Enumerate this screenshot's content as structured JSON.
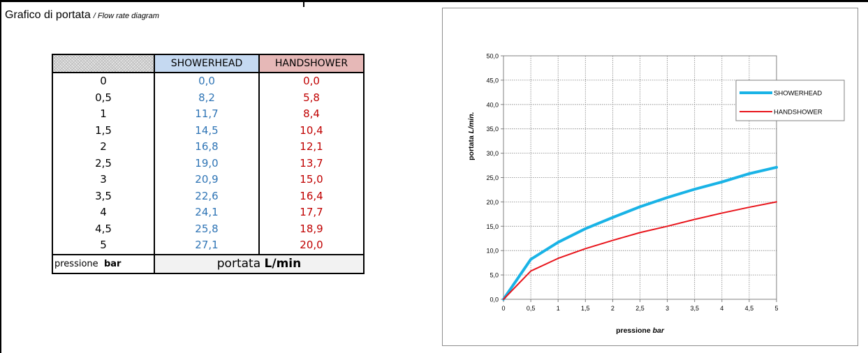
{
  "heading": {
    "title": "Grafico di portata",
    "subtitle": "/ Flow rate diagram"
  },
  "table": {
    "header": {
      "showerhead": "SHOWERHEAD",
      "handshower": "HANDSHOWER"
    },
    "rows": [
      {
        "p": "0",
        "sh": "0,0",
        "hs": "0,0"
      },
      {
        "p": "0,5",
        "sh": "8,2",
        "hs": "5,8"
      },
      {
        "p": "1",
        "sh": "11,7",
        "hs": "8,4"
      },
      {
        "p": "1,5",
        "sh": "14,5",
        "hs": "10,4"
      },
      {
        "p": "2",
        "sh": "16,8",
        "hs": "12,1"
      },
      {
        "p": "2,5",
        "sh": "19,0",
        "hs": "13,7"
      },
      {
        "p": "3",
        "sh": "20,9",
        "hs": "15,0"
      },
      {
        "p": "3,5",
        "sh": "22,6",
        "hs": "16,4"
      },
      {
        "p": "4",
        "sh": "24,1",
        "hs": "17,7"
      },
      {
        "p": "4,5",
        "sh": "25,8",
        "hs": "18,9"
      },
      {
        "p": "5",
        "sh": "27,1",
        "hs": "20,0"
      }
    ],
    "footer": {
      "pressure_label": "pressione",
      "pressure_unit": "bar",
      "flow_label": "portata",
      "flow_unit": "L/min"
    }
  },
  "chart_data": {
    "type": "line",
    "x": [
      0,
      0.5,
      1,
      1.5,
      2,
      2.5,
      3,
      3.5,
      4,
      4.5,
      5
    ],
    "x_tick_labels": [
      "0",
      "0,5",
      "1",
      "1,5",
      "2",
      "2,5",
      "3",
      "3,5",
      "4",
      "4,5",
      "5"
    ],
    "y_tick_labels": [
      "0,0",
      "5,0",
      "10,0",
      "15,0",
      "20,0",
      "25,0",
      "30,0",
      "35,0",
      "40,0",
      "45,0",
      "50,0"
    ],
    "y_ticks": [
      0,
      5,
      10,
      15,
      20,
      25,
      30,
      35,
      40,
      45,
      50
    ],
    "xlim": [
      0,
      5
    ],
    "ylim": [
      0,
      50
    ],
    "xlabel": {
      "main": "pressione",
      "unit": "bar"
    },
    "ylabel": {
      "main": "portata",
      "unit": "L/min."
    },
    "grid": true,
    "legend_position": "top-right",
    "series": [
      {
        "name": "SHOWERHEAD",
        "color": "#19b3e6",
        "values": [
          0,
          8.2,
          11.7,
          14.5,
          16.8,
          19.0,
          20.9,
          22.6,
          24.1,
          25.8,
          27.1
        ]
      },
      {
        "name": "HANDSHOWER",
        "color": "#e8141b",
        "values": [
          0,
          5.8,
          8.4,
          10.4,
          12.1,
          13.7,
          15.0,
          16.4,
          17.7,
          18.9,
          20.0
        ]
      }
    ]
  }
}
